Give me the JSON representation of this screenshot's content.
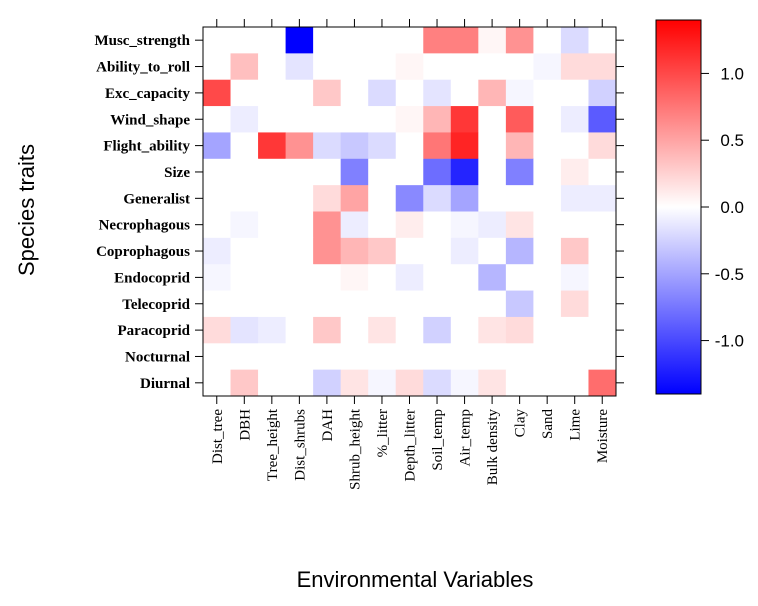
{
  "chart_data": {
    "type": "heatmap",
    "xlabel": "Environmental Variables",
    "ylabel": "Species traits",
    "x_categories": [
      "Dist_tree",
      "DBH",
      "Tree_height",
      "Dist_shrubs",
      "DAH",
      "Shrub_height",
      "%_litter",
      "Depth_litter",
      "Soil_temp",
      "Air_temp",
      "Bulk density",
      "Clay",
      "Sand",
      "Lime",
      "Moisture"
    ],
    "y_categories": [
      "Musc_strength",
      "Ability_to_roll",
      "Exc_capacity",
      "Wind_shape",
      "Flight_ability",
      "Size",
      "Generalist",
      "Necrophagous",
      "Coprophagous",
      "Endocoprid",
      "Telecoprid",
      "Paracoprid",
      "Nocturnal",
      "Diurnal"
    ],
    "values": [
      [
        0,
        0,
        0,
        -1.4,
        0,
        0,
        0,
        0,
        0.7,
        0.7,
        0.05,
        0.6,
        0,
        -0.2,
        0
      ],
      [
        0,
        0.35,
        0,
        -0.15,
        0,
        0,
        0,
        0.05,
        0,
        0,
        0,
        0,
        -0.05,
        0.2,
        0.2
      ],
      [
        1.0,
        0,
        0,
        0,
        0.3,
        0,
        -0.2,
        0,
        -0.15,
        0,
        0.4,
        -0.05,
        0,
        0,
        -0.25
      ],
      [
        0,
        -0.1,
        0,
        0,
        0,
        0,
        0,
        0.05,
        0.4,
        1.1,
        0,
        0.9,
        0,
        -0.1,
        -0.9
      ],
      [
        -0.5,
        0,
        1.1,
        0.6,
        -0.2,
        -0.3,
        -0.2,
        0,
        0.75,
        1.2,
        0,
        0.4,
        0,
        0,
        0.2
      ],
      [
        0,
        0,
        0,
        0,
        0,
        -0.7,
        0,
        0,
        -0.8,
        -1.2,
        0,
        -0.7,
        0,
        0.1,
        0
      ],
      [
        0,
        0,
        0,
        0,
        0.2,
        0.5,
        0,
        -0.65,
        -0.2,
        -0.5,
        0,
        0,
        0,
        -0.1,
        -0.1
      ],
      [
        0,
        -0.05,
        0,
        0,
        0.6,
        -0.1,
        0,
        0.1,
        0,
        -0.05,
        -0.1,
        0.15,
        0,
        0,
        0
      ],
      [
        -0.1,
        0,
        0,
        0,
        0.6,
        0.4,
        0.3,
        0,
        0,
        -0.1,
        0,
        -0.4,
        0,
        0.3,
        0
      ],
      [
        -0.05,
        0,
        0,
        0,
        0,
        0.05,
        0,
        -0.1,
        0,
        0,
        -0.4,
        0,
        0,
        -0.05,
        0
      ],
      [
        0,
        0,
        0,
        0,
        0,
        0,
        0,
        0,
        0,
        0,
        0,
        -0.3,
        0,
        0.2,
        0
      ],
      [
        0.2,
        -0.15,
        -0.1,
        0,
        0.3,
        0,
        0.15,
        0,
        -0.25,
        0,
        0.15,
        0.2,
        0,
        0,
        0
      ],
      [
        0,
        0,
        0,
        0,
        0,
        0,
        0,
        0,
        0,
        0,
        0,
        0,
        0,
        0,
        0
      ],
      [
        0,
        0.3,
        0,
        0,
        -0.25,
        0.15,
        -0.05,
        0.2,
        -0.2,
        -0.05,
        0.15,
        0,
        0,
        0,
        0.8
      ]
    ],
    "zlim": [
      -1.4,
      1.4
    ],
    "colorbar": {
      "ticks": [
        1.0,
        0.5,
        0.0,
        -0.5,
        -1.0
      ],
      "tick_labels": [
        "1.0",
        "0.5",
        "0.0",
        "-0.5",
        "-1.0"
      ],
      "low_color": "#0000ff",
      "mid_color": "#ffffff",
      "high_color": "#ff0000"
    },
    "grid": false,
    "legend": "right colorbar"
  }
}
